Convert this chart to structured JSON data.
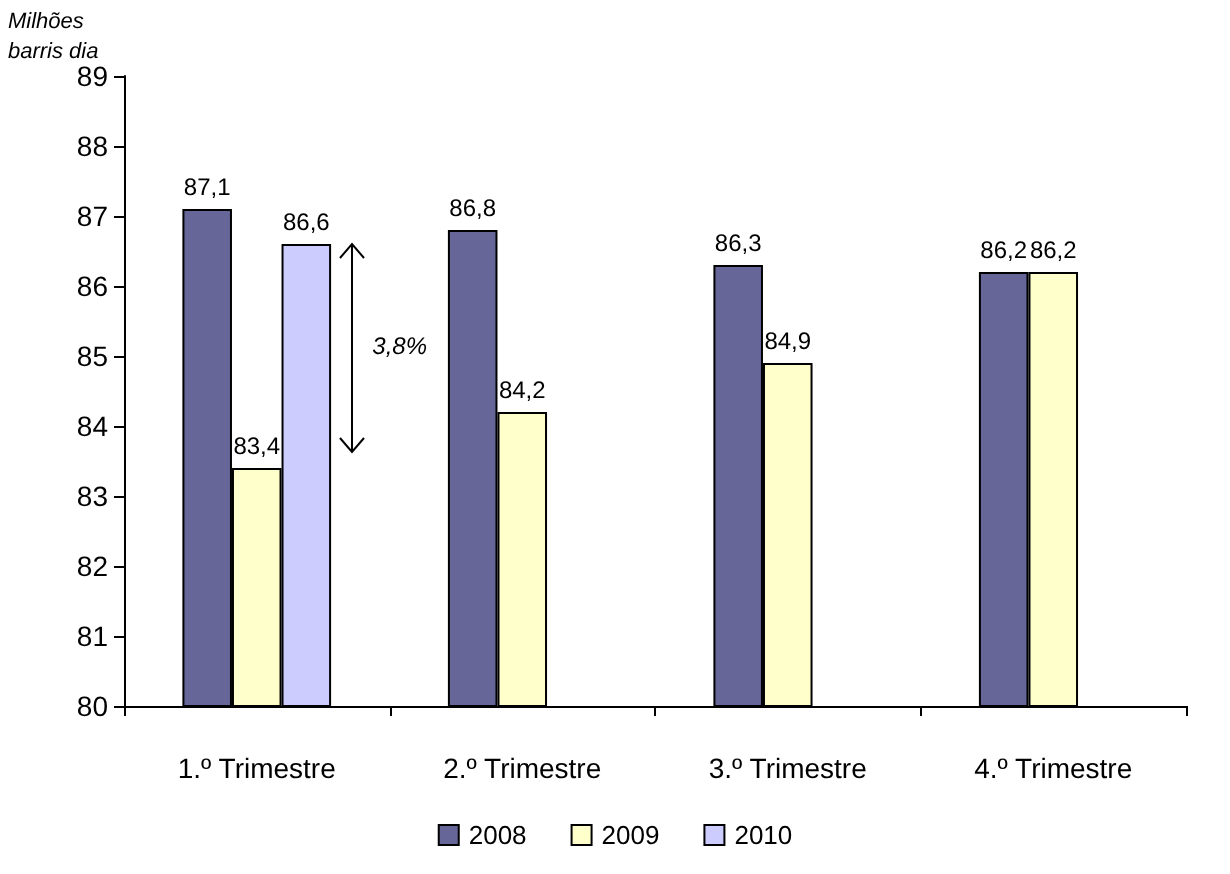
{
  "chart_data": {
    "type": "bar",
    "ylabel": "Milhões\nbarris dia",
    "categories": [
      "1.º Trimestre",
      "2.º Trimestre",
      "3.º Trimestre",
      "4.º Trimestre"
    ],
    "series": [
      {
        "name": "2008",
        "color": "#666699",
        "values": [
          87.1,
          86.8,
          86.3,
          86.2
        ],
        "value_labels": [
          "87,1",
          "86,8",
          "86,3",
          "86,2"
        ]
      },
      {
        "name": "2009",
        "color": "#ffffcc",
        "values": [
          83.4,
          84.2,
          84.9,
          86.2
        ],
        "value_labels": [
          "83,4",
          "84,2",
          "84,9",
          "86,2"
        ]
      },
      {
        "name": "2010",
        "color": "#ccccff",
        "values": [
          86.6,
          null,
          null,
          null
        ],
        "value_labels": [
          "86,6",
          null,
          null,
          null
        ]
      }
    ],
    "ylim": [
      80,
      89
    ],
    "yticks": [
      80,
      81,
      82,
      83,
      84,
      85,
      86,
      87,
      88,
      89
    ],
    "grid": false,
    "legend": "bottom",
    "annotations": [
      "3,8%"
    ]
  }
}
